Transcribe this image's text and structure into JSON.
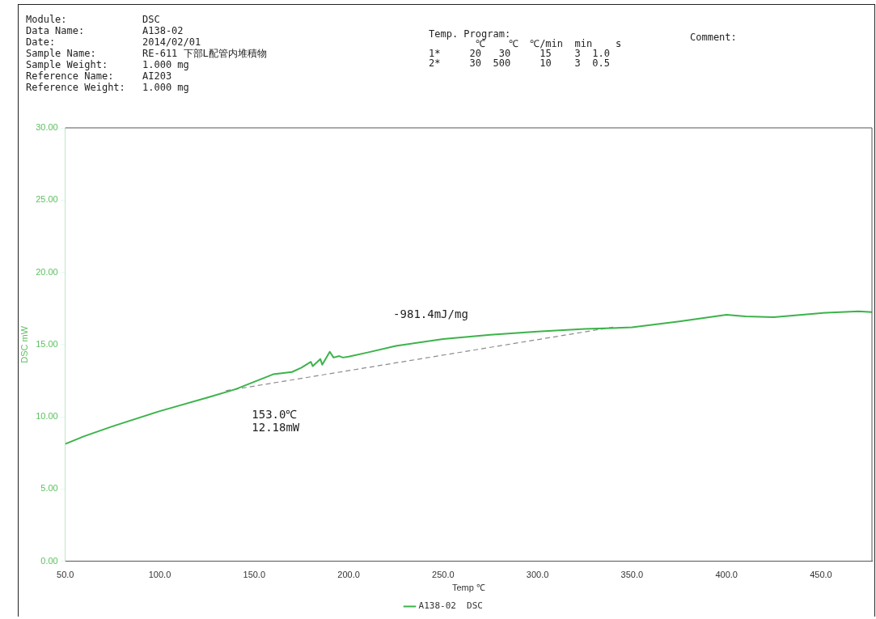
{
  "chart_data": {
    "type": "line",
    "xlabel": "Temp ℃",
    "ylabel": "DSC mW",
    "annotations": [
      "Module:",
      "DSC",
      "Data Name:",
      "A138-02",
      "Date:",
      "2014/02/01",
      "Sample Name:",
      "RE-611 下部L配管内堆積物",
      "Sample Weight:",
      "1.000 mg",
      "Reference Name:",
      "AI203",
      "Reference Weight:",
      "1.000 mg",
      "Temp. Program:",
      "        ℃    ℃  ℃/min  min    s",
      "1*     20   30     15    3  1.0",
      "2*     30  500     10    3  0.5",
      "Comment:",
      {
        "text": "-981.4mJ/mg",
        "x": 230,
        "y": 15.2
      },
      {
        "text": "153.0℃\n12.18mW",
        "x": 153,
        "y": 12.18
      }
    ],
    "series": [
      {
        "name": "A138-02  DSC",
        "color": "#3cb34a",
        "x": [
          50,
          60,
          75,
          100,
          125,
          140,
          150,
          160,
          170,
          175,
          180,
          181,
          185,
          186,
          190,
          192,
          195,
          197,
          200,
          210,
          225,
          250,
          275,
          300,
          325,
          350,
          375,
          400,
          410,
          425,
          450,
          470,
          477
        ],
        "values": [
          8.12,
          8.65,
          9.34,
          10.39,
          11.32,
          11.9,
          12.42,
          12.94,
          13.1,
          13.4,
          13.8,
          13.5,
          14.0,
          13.6,
          14.5,
          14.1,
          14.2,
          14.1,
          14.16,
          14.45,
          14.9,
          15.38,
          15.67,
          15.9,
          16.08,
          16.19,
          16.6,
          17.06,
          16.95,
          16.89,
          17.18,
          17.3,
          17.24
        ]
      },
      {
        "color": "#8c8c8c",
        "line_style": "dashed",
        "x": [
          135,
          340
        ],
        "values": [
          11.8,
          16.2
        ]
      }
    ],
    "xlim": [
      50,
      477
    ],
    "ylim": [
      0,
      30
    ],
    "xticks": [
      {
        "value": 50,
        "label": "50.0"
      },
      {
        "value": 100,
        "label": "100.0"
      },
      {
        "value": 150,
        "label": "150.0"
      },
      {
        "value": 200,
        "label": "200.0"
      },
      {
        "value": 250,
        "label": "250.0"
      },
      {
        "value": 300,
        "label": "300.0"
      },
      {
        "value": 350,
        "label": "350.0"
      },
      {
        "value": 400,
        "label": "400.0"
      },
      {
        "value": 450,
        "label": "450.0"
      }
    ],
    "yticks": [
      {
        "value": 0,
        "label": "0.00"
      },
      {
        "value": 5,
        "label": "5.00"
      },
      {
        "value": 10,
        "label": "10.00"
      },
      {
        "value": 15,
        "label": "15.00"
      },
      {
        "value": 20,
        "label": "20.00"
      },
      {
        "value": 25,
        "label": "25.00"
      },
      {
        "value": 30,
        "label": "30.00"
      }
    ],
    "grid": false,
    "legend": "bottom",
    "marker": "none"
  }
}
